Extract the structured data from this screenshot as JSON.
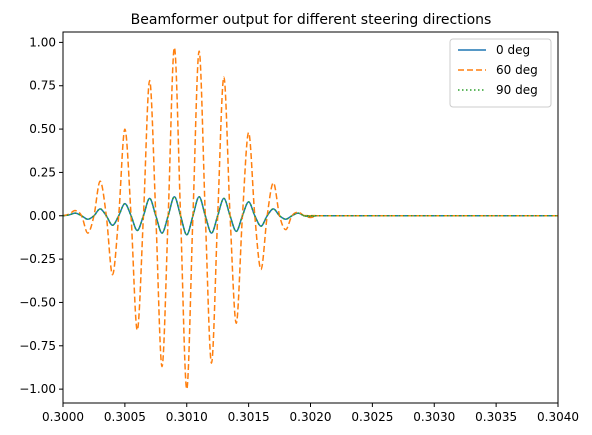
{
  "chart_data": {
    "type": "line",
    "title": "Beamformer output for different steering directions",
    "xlabel": "",
    "ylabel": "",
    "xlim": [
      0.3,
      0.304
    ],
    "ylim": [
      -1.08,
      1.06
    ],
    "xticks": [
      "0.3000",
      "0.3005",
      "0.3010",
      "0.3015",
      "0.3020",
      "0.3025",
      "0.3030",
      "0.3035",
      "0.3040"
    ],
    "xtick_values": [
      0.3,
      0.3005,
      0.301,
      0.3015,
      0.302,
      0.3025,
      0.303,
      0.3035,
      0.304
    ],
    "yticks": [
      "−1.00",
      "−0.75",
      "−0.50",
      "−0.25",
      "0.00",
      "0.25",
      "0.50",
      "0.75",
      "1.00"
    ],
    "ytick_values": [
      -1.0,
      -0.75,
      -0.5,
      -0.25,
      0.0,
      0.25,
      0.5,
      0.75,
      1.0
    ],
    "grid": false,
    "legend_position": "top-right",
    "series": [
      {
        "name": "0 deg",
        "color": "#1f77b4",
        "linestyle": "solid",
        "x": [
          0.3,
          0.30005,
          0.3001,
          0.30015,
          0.3002,
          0.30025,
          0.3003,
          0.30035,
          0.3004,
          0.30045,
          0.3005,
          0.30055,
          0.3006,
          0.30065,
          0.3007,
          0.30075,
          0.3008,
          0.30085,
          0.3009,
          0.30095,
          0.301,
          0.30105,
          0.3011,
          0.30115,
          0.3012,
          0.30125,
          0.3013,
          0.30135,
          0.3014,
          0.30145,
          0.3015,
          0.30155,
          0.3016,
          0.30165,
          0.3017,
          0.30175,
          0.3018,
          0.30185,
          0.3019,
          0.30195,
          0.302,
          0.30205,
          0.3021,
          0.304
        ],
        "y": [
          0.0,
          0.005,
          0.015,
          0.0,
          -0.02,
          0.0,
          0.04,
          0.0,
          -0.055,
          0.0,
          0.07,
          0.0,
          -0.085,
          0.0,
          0.1,
          0.0,
          -0.1,
          0.0,
          0.11,
          0.0,
          -0.11,
          0.0,
          0.11,
          0.0,
          -0.1,
          0.0,
          0.1,
          0.0,
          -0.09,
          0.0,
          0.08,
          0.0,
          -0.06,
          0.0,
          0.04,
          0.0,
          -0.02,
          0.0,
          0.015,
          0.0,
          -0.005,
          0.0,
          0.0,
          0.0
        ]
      },
      {
        "name": "60 deg",
        "color": "#ff7f0e",
        "linestyle": "dashed",
        "x": [
          0.3,
          0.30005,
          0.3001,
          0.30015,
          0.3002,
          0.30025,
          0.3003,
          0.30035,
          0.3004,
          0.30045,
          0.3005,
          0.30055,
          0.3006,
          0.30065,
          0.3007,
          0.30075,
          0.3008,
          0.30085,
          0.3009,
          0.30095,
          0.301,
          0.30105,
          0.3011,
          0.30115,
          0.3012,
          0.30125,
          0.3013,
          0.30135,
          0.3014,
          0.30145,
          0.3015,
          0.30155,
          0.3016,
          0.30165,
          0.3017,
          0.30175,
          0.3018,
          0.30185,
          0.3019,
          0.30195,
          0.302,
          0.30205,
          0.3021,
          0.304
        ],
        "y": [
          0.0,
          0.01,
          0.03,
          0.0,
          -0.1,
          0.0,
          0.2,
          0.0,
          -0.34,
          0.0,
          0.5,
          0.0,
          -0.66,
          0.0,
          0.78,
          0.0,
          -0.87,
          0.0,
          0.97,
          0.0,
          -1.0,
          0.0,
          0.95,
          0.0,
          -0.85,
          0.0,
          0.8,
          0.0,
          -0.62,
          0.0,
          0.48,
          0.0,
          -0.31,
          0.0,
          0.19,
          0.0,
          -0.08,
          0.0,
          0.02,
          0.0,
          -0.01,
          0.0,
          0.0,
          0.0
        ]
      },
      {
        "name": "90 deg",
        "color": "#2ca02c",
        "linestyle": "dotted",
        "x": [
          0.3,
          0.30005,
          0.3001,
          0.30015,
          0.3002,
          0.30025,
          0.3003,
          0.30035,
          0.3004,
          0.30045,
          0.3005,
          0.30055,
          0.3006,
          0.30065,
          0.3007,
          0.30075,
          0.3008,
          0.30085,
          0.3009,
          0.30095,
          0.301,
          0.30105,
          0.3011,
          0.30115,
          0.3012,
          0.30125,
          0.3013,
          0.30135,
          0.3014,
          0.30145,
          0.3015,
          0.30155,
          0.3016,
          0.30165,
          0.3017,
          0.30175,
          0.3018,
          0.30185,
          0.3019,
          0.30195,
          0.302,
          0.30205,
          0.3021,
          0.304
        ],
        "y": [
          0.0,
          0.005,
          0.015,
          0.0,
          -0.02,
          0.0,
          0.04,
          0.0,
          -0.055,
          0.0,
          0.07,
          0.0,
          -0.085,
          0.0,
          0.1,
          0.0,
          -0.1,
          0.0,
          0.11,
          0.0,
          -0.11,
          0.0,
          0.11,
          0.0,
          -0.1,
          0.0,
          0.1,
          0.0,
          -0.09,
          0.0,
          0.08,
          0.0,
          -0.06,
          0.0,
          0.04,
          0.0,
          -0.02,
          0.0,
          0.015,
          0.0,
          -0.005,
          0.0,
          0.0,
          0.0
        ]
      }
    ]
  }
}
